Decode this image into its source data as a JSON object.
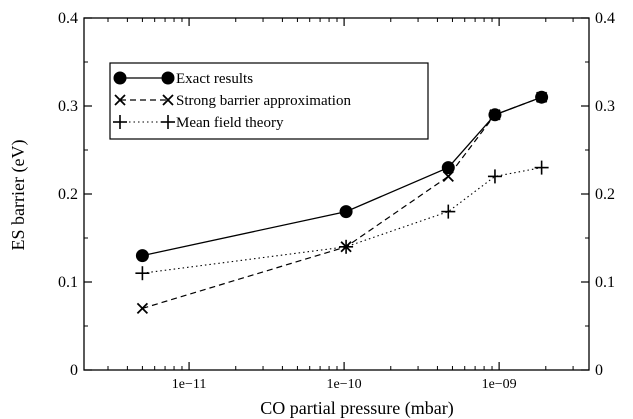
{
  "chart_data": {
    "type": "line",
    "title": "",
    "xlabel": "CO partial pressure  (mbar)",
    "ylabel": "ES  barrier  (eV)",
    "xscale": "log",
    "xlim": [
      2.1e-12,
      3.8e-09
    ],
    "ylim": [
      0,
      0.4
    ],
    "x_ticks": [
      1e-11,
      1e-10,
      1e-09
    ],
    "x_tick_labels": [
      "1e−11",
      "1e−10",
      "1e−09"
    ],
    "y_ticks": [
      0,
      0.1,
      0.2,
      0.3,
      0.4
    ],
    "y_tick_labels": [
      "0",
      "0.1",
      "0.2",
      "0.3",
      "0.4"
    ],
    "right_y_tick_labels": [
      "0",
      "0.1",
      "0.2",
      "0.3",
      "0.4"
    ],
    "grid": false,
    "legend_position": "top-left",
    "series": [
      {
        "name": "Exact results",
        "marker": "filled-circle",
        "line": "solid",
        "x": [
          5e-12,
          1.03e-10,
          4.7e-10,
          9.4e-10,
          1.88e-09
        ],
        "y": [
          0.13,
          0.18,
          0.23,
          0.29,
          0.31
        ]
      },
      {
        "name": "Strong barrier approximation",
        "marker": "x",
        "line": "dashed",
        "x": [
          5e-12,
          1.03e-10,
          4.7e-10,
          9.4e-10,
          1.88e-09
        ],
        "y": [
          0.07,
          0.14,
          0.22,
          0.29,
          0.31
        ]
      },
      {
        "name": "Mean field theory",
        "marker": "plus",
        "line": "dotted",
        "x": [
          5e-12,
          1.03e-10,
          4.7e-10,
          9.4e-10,
          1.88e-09
        ],
        "y": [
          0.11,
          0.14,
          0.18,
          0.22,
          0.23
        ]
      }
    ]
  }
}
